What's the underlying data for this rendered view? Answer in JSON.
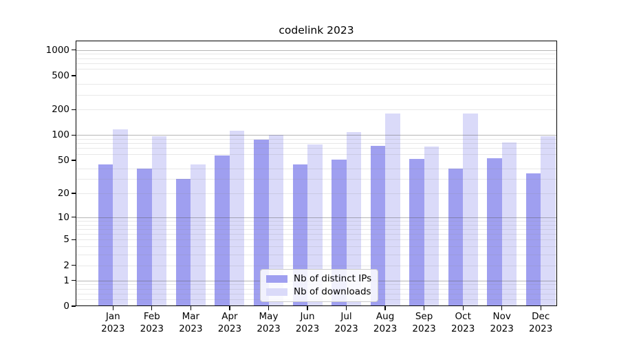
{
  "chart_data": {
    "type": "bar",
    "title": "codelink 2023",
    "categories": [
      "Jan",
      "Feb",
      "Mar",
      "Apr",
      "May",
      "Jun",
      "Jul",
      "Aug",
      "Sep",
      "Oct",
      "Nov",
      "Dec"
    ],
    "x_tick_year": "2023",
    "series": [
      {
        "name": "Nb of distinct IPs",
        "color": "#9f9ff0",
        "values": [
          45,
          40,
          30,
          57,
          88,
          45,
          51,
          74,
          52,
          40,
          53,
          35
        ]
      },
      {
        "name": "Nb of downloads",
        "color": "#dadaf9",
        "values": [
          116,
          97,
          45,
          112,
          100,
          78,
          108,
          180,
          73,
          180,
          82,
          97
        ]
      }
    ],
    "yscale": "log1p",
    "yticks": [
      0,
      1,
      2,
      5,
      10,
      20,
      50,
      100,
      200,
      500,
      1000
    ],
    "y_minor_gridlines": [
      0.2,
      0.4,
      0.6,
      0.8,
      2,
      3,
      4,
      5,
      6,
      7,
      8,
      9,
      20,
      30,
      40,
      60,
      70,
      80,
      90,
      200,
      300,
      400,
      600,
      700,
      800,
      900
    ],
    "ylim": [
      0,
      1290
    ],
    "xlabel": "",
    "ylabel": "",
    "grid": "horizontal, drawn above bars",
    "legend_position": "lower center"
  },
  "colors": {
    "background": "#ffffff",
    "axis": "#000000",
    "text": "#000000",
    "grid_major": "#b0b0b0",
    "grid_minor": "#e6e6e6",
    "legend_border": "#cbcbcb",
    "bar_ips": "#9f9ff0",
    "bar_downloads": "#dadaf9"
  }
}
